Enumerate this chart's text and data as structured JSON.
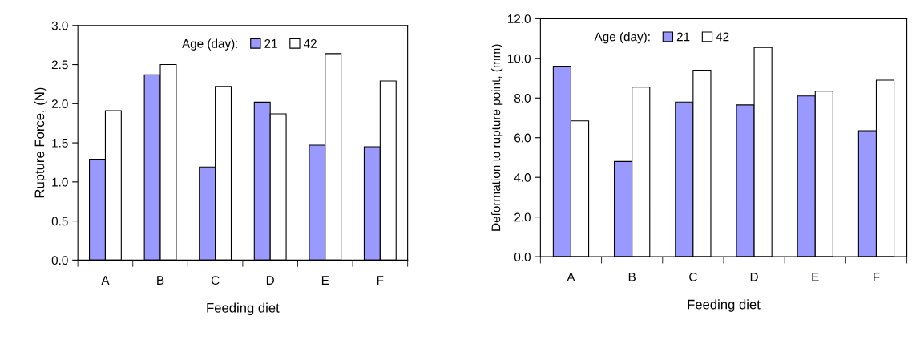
{
  "chart_data": [
    {
      "type": "bar",
      "categories": [
        "A",
        "B",
        "C",
        "D",
        "E",
        "F"
      ],
      "xlabel": "Feeding diet",
      "ylabel": "Rupture Force, (N)",
      "legend_title": "Age (day):",
      "legend": "top",
      "series": [
        {
          "name": "21",
          "color": "#9999ff",
          "values": [
            1.29,
            2.37,
            1.19,
            2.02,
            1.47,
            1.45
          ]
        },
        {
          "name": "42",
          "color": "#ffffff",
          "values": [
            1.91,
            2.5,
            2.22,
            1.87,
            2.64,
            2.29
          ]
        }
      ],
      "ylim": [
        0,
        3
      ],
      "yticks": [
        {
          "value": 0,
          "label": "0.0"
        },
        {
          "value": 0.5,
          "label": "0.5"
        },
        {
          "value": 1,
          "label": "1.0"
        },
        {
          "value": 1.5,
          "label": "1.5"
        },
        {
          "value": 2,
          "label": "2.0"
        },
        {
          "value": 2.5,
          "label": "2.5"
        },
        {
          "value": 3,
          "label": "3.0"
        }
      ],
      "grid": false
    },
    {
      "type": "bar",
      "categories": [
        "A",
        "B",
        "C",
        "D",
        "E",
        "F"
      ],
      "xlabel": "Feeding diet",
      "ylabel": "Deformation to rupture point, (mm)",
      "legend_title": "Age (day):",
      "legend": "top left",
      "series": [
        {
          "name": "21",
          "color": "#9999ff",
          "values": [
            9.6,
            4.8,
            7.8,
            7.65,
            8.1,
            6.35
          ]
        },
        {
          "name": "42",
          "color": "#ffffff",
          "values": [
            6.85,
            8.55,
            9.4,
            10.55,
            8.35,
            8.9
          ]
        }
      ],
      "ylim": [
        0,
        12
      ],
      "yticks": [
        {
          "value": 0,
          "label": "0.0"
        },
        {
          "value": 2,
          "label": "2.0"
        },
        {
          "value": 4,
          "label": "4.0"
        },
        {
          "value": 6,
          "label": "6.0"
        },
        {
          "value": 8,
          "label": "8.0"
        },
        {
          "value": 10,
          "label": "10.0"
        },
        {
          "value": 12,
          "label": "12.0"
        }
      ],
      "grid": false
    }
  ]
}
